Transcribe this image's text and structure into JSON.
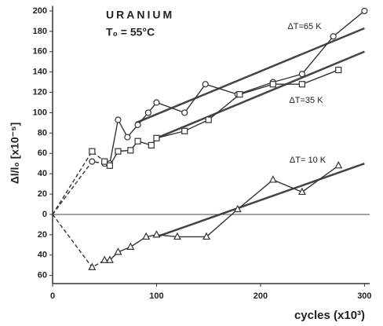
{
  "chart_data": {
    "type": "line",
    "annotations": [
      "URANIUM",
      "T₀ = 55°C"
    ],
    "y_label": "Δl/l₀ [x10⁻⁵]",
    "x_label": "cycles (x10³)",
    "xlim": [
      0,
      305
    ],
    "ylim": [
      -68,
      205
    ],
    "xticks": [
      0,
      100,
      200,
      300
    ],
    "yticks": [
      {
        "value": -60,
        "label": "60"
      },
      {
        "value": -40,
        "label": "40"
      },
      {
        "value": -20,
        "label": "20"
      },
      0,
      20,
      40,
      60,
      80,
      100,
      120,
      140,
      160,
      180,
      200
    ],
    "dashed_through_x": 55,
    "series": [
      {
        "marker": "circle",
        "color": "#333",
        "x": [
          0,
          38,
          50,
          55,
          63,
          72,
          82,
          92,
          100,
          127,
          147,
          178,
          212,
          240,
          270,
          300
        ],
        "values": [
          0,
          52,
          50,
          50,
          93,
          76,
          88,
          100,
          110,
          100,
          128,
          118,
          130,
          138,
          175,
          200
        ]
      },
      {
        "marker": "square",
        "color": "#333",
        "x": [
          0,
          38,
          50,
          55,
          63,
          75,
          82,
          95,
          100,
          127,
          150,
          180,
          212,
          240,
          275
        ],
        "values": [
          0,
          62,
          52,
          48,
          62,
          63,
          72,
          68,
          75,
          82,
          93,
          118,
          128,
          128,
          142
        ]
      },
      {
        "marker": "triangle",
        "color": "#333",
        "x": [
          0,
          38,
          50,
          55,
          63,
          75,
          90,
          100,
          120,
          148,
          178,
          212,
          240,
          275
        ],
        "values": [
          0,
          -52,
          -45,
          -45,
          -37,
          -32,
          -22,
          -20,
          -22,
          -22,
          5,
          34,
          22,
          48
        ]
      }
    ],
    "fits": [
      {
        "label": "ΔT=65 K",
        "x": [
          80,
          300
        ],
        "y": [
          90,
          183
        ]
      },
      {
        "label": "ΔT=35 K",
        "x": [
          100,
          300
        ],
        "y": [
          75,
          160
        ]
      },
      {
        "label": "ΔT= 10 K",
        "x": [
          100,
          300
        ],
        "y": [
          -22,
          50
        ]
      }
    ]
  }
}
